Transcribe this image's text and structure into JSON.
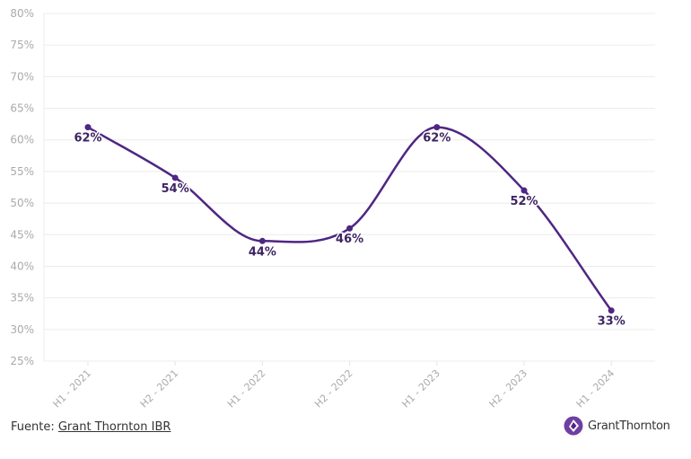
{
  "chart_data": {
    "type": "line",
    "title": "",
    "xlabel": "",
    "ylabel": "",
    "categories": [
      "H1 - 2021",
      "H2 - 2021",
      "H1 - 2022",
      "H2 - 2022",
      "H1 - 2023",
      "H2 - 2023",
      "H1 - 2024"
    ],
    "series": [
      {
        "name": "",
        "values": [
          62,
          54,
          44,
          46,
          62,
          52,
          33
        ],
        "labels": [
          "62%",
          "54%",
          "44%",
          "46%",
          "62%",
          "52%",
          "33%"
        ]
      }
    ],
    "ylim": [
      25,
      80
    ],
    "yticks": [
      "25%",
      "30%",
      "35%",
      "40%",
      "45%",
      "50%",
      "55%",
      "60%",
      "65%",
      "70%",
      "75%",
      "80%"
    ],
    "grid": true,
    "color": "#4f2683"
  },
  "footer": {
    "source_prefix": "Fuente: ",
    "source_link": "Grant Thornton IBR",
    "logo_text": "GrantThornton"
  }
}
